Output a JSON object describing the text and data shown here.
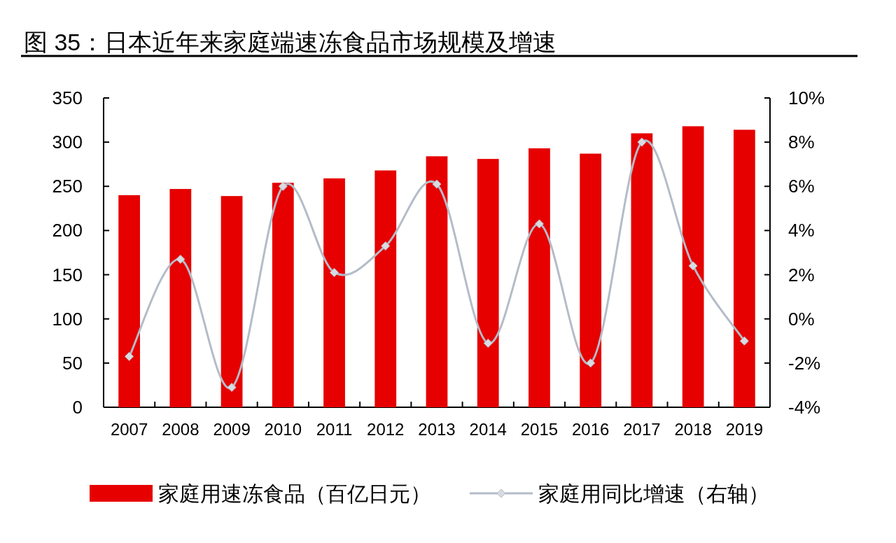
{
  "chart_data": {
    "type": "bar",
    "title": "图  35：日本近年来家庭端速冻食品市场规模及增速",
    "categories": [
      "2007",
      "2008",
      "2009",
      "2010",
      "2011",
      "2012",
      "2013",
      "2014",
      "2015",
      "2016",
      "2017",
      "2018",
      "2019"
    ],
    "series": [
      {
        "name": "家庭用速冻食品（百亿日元）",
        "color": "#e60000",
        "values": [
          240,
          247,
          239,
          254,
          259,
          268,
          284,
          281,
          293,
          287,
          310,
          318,
          314
        ]
      },
      {
        "name": "家庭用同比增速（右轴）",
        "type": "line",
        "axis": "y2",
        "color": "#b4bcc8",
        "marker": "diamond",
        "values": [
          -1.7,
          2.7,
          -3.1,
          6.0,
          2.1,
          3.3,
          6.1,
          -1.1,
          4.3,
          -2.0,
          8.0,
          2.4,
          -1.0
        ]
      }
    ],
    "ylim": [
      0,
      350
    ],
    "yticks": [
      0,
      50,
      100,
      150,
      200,
      250,
      300,
      350
    ],
    "y2lim": [
      -4,
      10
    ],
    "y2ticks": [
      {
        "value": -4,
        "label": "-4%"
      },
      {
        "value": -2,
        "label": "-2%"
      },
      {
        "value": 0,
        "label": "0%"
      },
      {
        "value": 2,
        "label": "2%"
      },
      {
        "value": 4,
        "label": "4%"
      },
      {
        "value": 6,
        "label": "6%"
      },
      {
        "value": 8,
        "label": "8%"
      },
      {
        "value": 10,
        "label": "10%"
      }
    ],
    "grid": false,
    "legend": "bottom"
  }
}
